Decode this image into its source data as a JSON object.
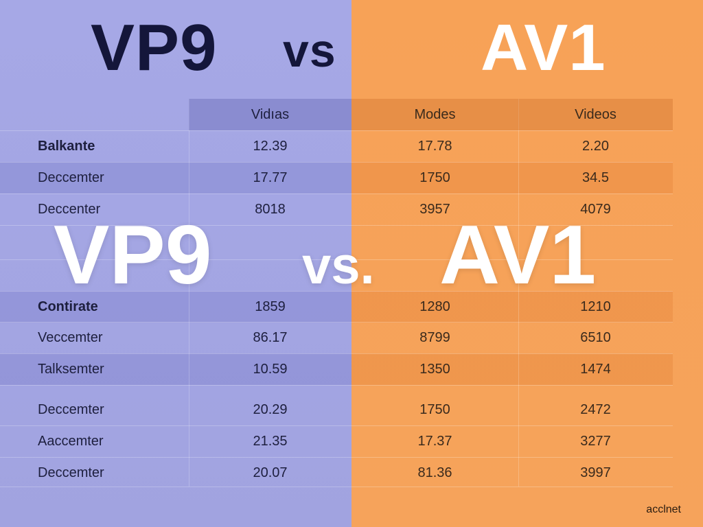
{
  "header": {
    "left_title": "VP9",
    "middle_title": "vs",
    "right_title": "AV1"
  },
  "table": {
    "columns": [
      "Vidıas",
      "Modes",
      "Videos"
    ],
    "rows": [
      {
        "label": "Balkante",
        "values": [
          "12.39",
          "17.78",
          "2.20"
        ]
      },
      {
        "label": "Deccemter",
        "values": [
          "17.77",
          "1750",
          "34.5"
        ]
      },
      {
        "label": "Deccenter",
        "values": [
          "8018",
          "3957",
          "4079"
        ]
      },
      {
        "label": "Contirate",
        "values": [
          "1859",
          "1280",
          "1210"
        ]
      },
      {
        "label": "Veccemter",
        "values": [
          "86.17",
          "8799",
          "6510"
        ]
      },
      {
        "label": "Talksemter",
        "values": [
          "10.59",
          "1350",
          "1474"
        ]
      },
      {
        "label": "Deccemter",
        "values": [
          "20.29",
          "1750",
          "2472"
        ]
      },
      {
        "label": "Aaccemter",
        "values": [
          "21.35",
          "17.37",
          "3277"
        ]
      },
      {
        "label": "Deccemter",
        "values": [
          "20.07",
          "81.36",
          "3997"
        ]
      }
    ]
  },
  "overlay": {
    "left": "VP9",
    "middle": "vs.",
    "right": "AV1"
  },
  "brand": {
    "logo_text": "acclnet"
  },
  "colors": {
    "left_bg": "#a3a6e2",
    "right_bg": "#f7a257",
    "dark_text": "#14163a"
  }
}
